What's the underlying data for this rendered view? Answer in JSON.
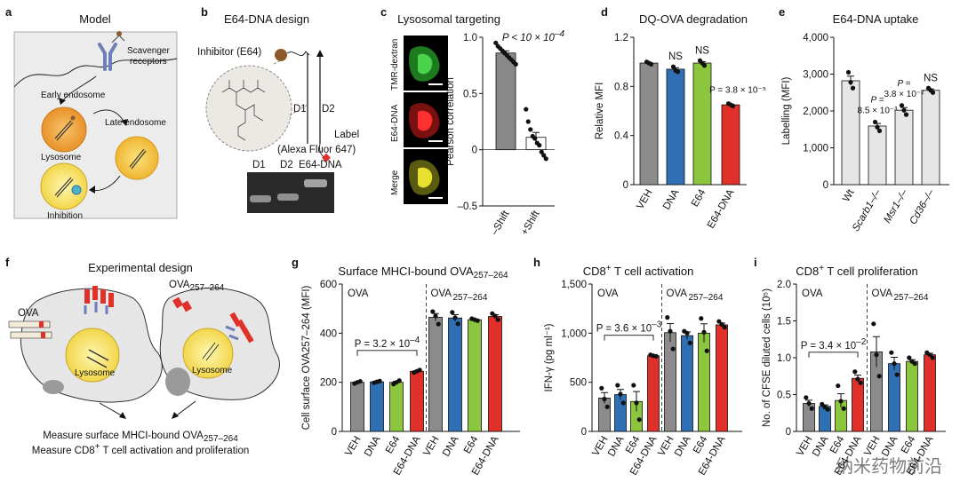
{
  "panels": {
    "a": {
      "letter": "a",
      "title": "Model",
      "labels": {
        "scavenger": "Scavenger\nreceptors",
        "early": "Early endosome",
        "late": "Late endosome",
        "lysosome": "Lysosome",
        "inhibition": "Inhibition"
      }
    },
    "b": {
      "letter": "b",
      "title": "E64-DNA design",
      "labels": {
        "inhibitor": "Inhibitor (E64)",
        "d1": "D1",
        "d2": "D2",
        "label": "Label",
        "alexa": "(Alexa Fluor 647)"
      },
      "gel_lanes": [
        "D1",
        "D2",
        "E64-DNA"
      ]
    },
    "c": {
      "letter": "c",
      "title": "Lysosomal targeting",
      "image_labels": [
        "TMR-dextran",
        "E64-DNA",
        "Merge"
      ]
    },
    "d": {
      "letter": "d",
      "title": "DQ-OVA degradation"
    },
    "e": {
      "letter": "e",
      "title": "E64-DNA uptake"
    },
    "f": {
      "letter": "f",
      "title": "Experimental design",
      "labels": {
        "ova": "OVA",
        "ova_peptide": "OVA",
        "ova_peptide_sub": "257–264",
        "lysosome1": "Lysosome",
        "lysosome2": "Lysosome",
        "measure1": "Measure surface MHCI-bound OVA",
        "measure1_sub": "257–264",
        "measure2_a": "Measure CD8",
        "measure2_sup": "+",
        "measure2_b": " T cell activation and proliferation"
      }
    },
    "g": {
      "letter": "g",
      "title_a": "Surface MHCI-bound OVA",
      "title_sub": "257–264"
    },
    "h": {
      "letter": "h",
      "title_a": "CD8",
      "title_sup": "+",
      "title_b": " T cell activation"
    },
    "i": {
      "letter": "i",
      "title_a": "CD8",
      "title_sup": "+",
      "title_b": " T cell proliferation"
    }
  },
  "watermark": "纳米药物前沿",
  "colors": {
    "veh": "#8c8c8c",
    "dna": "#2f6fb4",
    "e64": "#8cc63f",
    "e64dna": "#e0302a",
    "light": "#e6e6e6",
    "gel": "#6f6f6f"
  },
  "chart_data": [
    {
      "id": "c",
      "type": "scatter-bar",
      "ylabel": "Pearson correlation",
      "categories": [
        "–Shift",
        "+Shift"
      ],
      "values": [
        0.86,
        0.11
      ],
      "points": [
        [
          0.95,
          0.92,
          0.9,
          0.88,
          0.86,
          0.84,
          0.82,
          0.8,
          0.78,
          0.76
        ],
        [
          0.36,
          0.25,
          0.18,
          0.12,
          0.1,
          0.06,
          0.04,
          -0.02,
          -0.05,
          -0.08
        ]
      ],
      "ylim": [
        -0.5,
        1.0
      ],
      "yticks": [
        "–0.5",
        "0",
        "0.5",
        "1.0"
      ],
      "annotations": [
        {
          "text": "P < 10 × 10",
          "sup": "–4"
        }
      ]
    },
    {
      "id": "d",
      "type": "bar",
      "ylabel": "Relative MFI",
      "categories": [
        "VEH",
        "DNA",
        "E64",
        "E64-DNA"
      ],
      "values": [
        0.99,
        0.94,
        0.99,
        0.65
      ],
      "points": [
        [
          1.0,
          0.99,
          0.98
        ],
        [
          0.96,
          0.93,
          0.92
        ],
        [
          1.01,
          0.99,
          0.97
        ],
        [
          0.66,
          0.65,
          0.64
        ]
      ],
      "ylim": [
        0,
        1.2
      ],
      "yticks": [
        "0",
        "0.4",
        "0.8",
        "1.2"
      ],
      "annotations": [
        "",
        "NS",
        "NS",
        "P = 3.8 × 10⁻⁵"
      ]
    },
    {
      "id": "e",
      "type": "bar",
      "ylabel": "Labelling (MFI)",
      "categories": [
        "Wt",
        "Scarb1–/–",
        "Msr1–/–",
        "Cd36–/–"
      ],
      "values": [
        2820,
        1590,
        2020,
        2560
      ],
      "points": [
        [
          3050,
          2780,
          2620
        ],
        [
          1700,
          1560,
          1460
        ],
        [
          2150,
          2020,
          1900
        ],
        [
          2620,
          2560,
          2500
        ]
      ],
      "ylim": [
        0,
        4000
      ],
      "yticks": [
        "0",
        "1,000",
        "2,000",
        "3,000",
        "4,000"
      ],
      "annotations": [
        "",
        "P = 8.5 × 10⁻³",
        "P = 3.8 × 10⁻²",
        "NS"
      ]
    },
    {
      "id": "g",
      "type": "grouped-bar",
      "ylabel": "Cell surface OVA257–264 (MFI)",
      "groups": [
        "OVA",
        "OVA257–264"
      ],
      "categories": [
        "VEH",
        "DNA",
        "E64",
        "E64-DNA",
        "VEH",
        "DNA",
        "E64",
        "E64-DNA"
      ],
      "values": [
        200,
        202,
        200,
        245,
        465,
        462,
        455,
        468
      ],
      "points": [
        [
          195,
          200,
          204
        ],
        [
          198,
          202,
          205
        ],
        [
          193,
          200,
          207
        ],
        [
          240,
          245,
          250
        ],
        [
          488,
          470,
          437
        ],
        [
          485,
          463,
          438
        ],
        [
          459,
          455,
          451
        ],
        [
          480,
          470,
          455
        ]
      ],
      "ylim": [
        0,
        600
      ],
      "yticks": [
        "0",
        "200",
        "400",
        "600"
      ],
      "annotations": [
        {
          "text": "P = 3.2 × 10",
          "sup": "–4"
        }
      ]
    },
    {
      "id": "h",
      "type": "grouped-bar",
      "ylabel": "IFN-γ (pg ml⁻¹)",
      "groups": [
        "OVA",
        "OVA257–264"
      ],
      "categories": [
        "VEH",
        "DNA",
        "E64",
        "E64-DNA",
        "VEH",
        "DNA",
        "E64",
        "E64-DNA"
      ],
      "values": [
        340,
        375,
        305,
        770,
        1005,
        975,
        1000,
        1085
      ],
      "points": [
        [
          440,
          330,
          250
        ],
        [
          470,
          380,
          290
        ],
        [
          470,
          290,
          120
        ],
        [
          780,
          770,
          765
        ],
        [
          1160,
          1020,
          840
        ],
        [
          1020,
          1000,
          900
        ],
        [
          1150,
          1010,
          820
        ],
        [
          1120,
          1090,
          1060
        ]
      ],
      "ylim": [
        0,
        1500
      ],
      "yticks": [
        "0",
        "500",
        "1,000",
        "1,500"
      ],
      "annotations": [
        {
          "text": "P = 3.6 × 10",
          "sup": "–3"
        }
      ]
    },
    {
      "id": "i",
      "type": "grouped-bar",
      "ylabel": "No. of CFSE diluted cells (10⁵)",
      "groups": [
        "OVA",
        "OVA257–264"
      ],
      "categories": [
        "VEH",
        "DNA",
        "E64",
        "E64-DNA",
        "VEH",
        "DNA",
        "E64",
        "E64-DNA"
      ],
      "values": [
        0.38,
        0.34,
        0.42,
        0.72,
        1.08,
        0.92,
        0.95,
        1.04
      ],
      "points": [
        [
          0.46,
          0.38,
          0.31
        ],
        [
          0.37,
          0.33,
          0.3
        ],
        [
          0.62,
          0.41,
          0.31
        ],
        [
          0.81,
          0.71,
          0.66
        ],
        [
          1.46,
          1.04,
          0.75
        ],
        [
          1.07,
          0.92,
          0.77
        ],
        [
          1.0,
          0.95,
          0.92
        ],
        [
          1.07,
          1.04,
          1.0
        ]
      ],
      "ylim": [
        0,
        2.0
      ],
      "yticks": [
        "0",
        "0.5",
        "1.0",
        "1.5",
        "2.0"
      ],
      "annotations": [
        {
          "text": "P = 3.4 × 10",
          "sup": "–2"
        }
      ]
    }
  ]
}
